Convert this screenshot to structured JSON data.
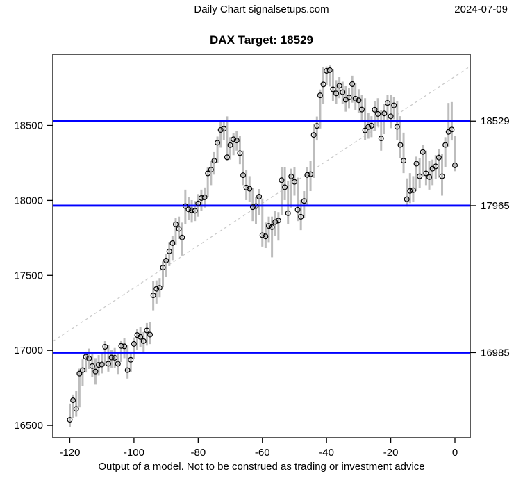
{
  "header": {
    "title": "Daily Chart signalsetups.com",
    "date": "2024-07-09"
  },
  "chart": {
    "title": "DAX Target: 18529"
  },
  "footer": {
    "disclaimer": "Output of a model. Not to be construed as trading or investment advice"
  },
  "colors": {
    "bar": "#bdbdbd",
    "trend": "#c8c8c8",
    "level_line": "#0000ff",
    "axis": "#000000",
    "marker_stroke": "#000000"
  },
  "chart_data": {
    "type": "bar",
    "title": "DAX Target: 18529",
    "xlabel": "",
    "ylabel": "",
    "x_ticks": [
      -120,
      -100,
      -80,
      -60,
      -40,
      -20,
      0
    ],
    "y_ticks": [
      16500,
      17000,
      17500,
      18000,
      18500
    ],
    "xlim": [
      -125.3,
      4.76
    ],
    "ylim": [
      16417,
      18975
    ],
    "grid": false,
    "legend": "none",
    "h_lines": [
      {
        "value": 18529,
        "label": "18529"
      },
      {
        "value": 17965,
        "label": "17965"
      },
      {
        "value": 16985,
        "label": "16985"
      }
    ],
    "trend_line": {
      "x": [
        -125.3,
        4.76
      ],
      "y": [
        17060,
        18894
      ],
      "style": "dashed"
    },
    "start_day": -120,
    "bars_format": [
      "low",
      "high",
      "close"
    ],
    "bars": [
      [
        16490,
        16645,
        16537
      ],
      [
        16548,
        16705,
        16667
      ],
      [
        16558,
        16728,
        16610
      ],
      [
        16620,
        16878,
        16845
      ],
      [
        16762,
        16940,
        16868
      ],
      [
        16852,
        16992,
        16957
      ],
      [
        16876,
        17012,
        16946
      ],
      [
        16822,
        16978,
        16895
      ],
      [
        16772,
        16948,
        16859
      ],
      [
        16832,
        16968,
        16903
      ],
      [
        16846,
        16986,
        16906
      ],
      [
        16902,
        17062,
        17024
      ],
      [
        16858,
        17034,
        16911
      ],
      [
        16882,
        17002,
        16952
      ],
      [
        16884,
        17016,
        16950
      ],
      [
        16842,
        16984,
        16911
      ],
      [
        16922,
        17066,
        17030
      ],
      [
        16948,
        17082,
        17027
      ],
      [
        16812,
        17038,
        16868
      ],
      [
        16856,
        16992,
        16937
      ],
      [
        16942,
        17086,
        17043
      ],
      [
        17002,
        17142,
        17102
      ],
      [
        17022,
        17154,
        17090
      ],
      [
        16986,
        17122,
        17062
      ],
      [
        17032,
        17182,
        17133
      ],
      [
        17042,
        17188,
        17105
      ],
      [
        17267,
        17460,
        17367
      ],
      [
        17312,
        17466,
        17410
      ],
      [
        17352,
        17482,
        17417
      ],
      [
        17422,
        17592,
        17552
      ],
      [
        17492,
        17642,
        17599
      ],
      [
        17562,
        17722,
        17660
      ],
      [
        17602,
        17762,
        17715
      ],
      [
        17702,
        17882,
        17841
      ],
      [
        17742,
        17892,
        17810
      ],
      [
        17632,
        17852,
        17753
      ],
      [
        17842,
        18072,
        17962
      ],
      [
        17872,
        18022,
        17940
      ],
      [
        17852,
        18002,
        17934
      ],
      [
        17862,
        17996,
        17931
      ],
      [
        17892,
        18042,
        17980
      ],
      [
        17932,
        18072,
        18016
      ],
      [
        17952,
        18086,
        18021
      ],
      [
        18022,
        18222,
        18180
      ],
      [
        18102,
        18262,
        18205
      ],
      [
        18172,
        18322,
        18265
      ],
      [
        18252,
        18426,
        18385
      ],
      [
        18352,
        18522,
        18470
      ],
      [
        18402,
        18536,
        18478
      ],
      [
        18265,
        18561,
        18288
      ],
      [
        18272,
        18422,
        18369
      ],
      [
        18302,
        18448,
        18408
      ],
      [
        18332,
        18462,
        18400
      ],
      [
        18242,
        18432,
        18315
      ],
      [
        18102,
        18332,
        18168
      ],
      [
        18002,
        18202,
        18086
      ],
      [
        17992,
        18162,
        18078
      ],
      [
        17862,
        18082,
        17955
      ],
      [
        17842,
        18022,
        17962
      ],
      [
        17902,
        18076,
        18025
      ],
      [
        17692,
        18012,
        17768
      ],
      [
        17682,
        17852,
        17760
      ],
      [
        17722,
        17892,
        17830
      ],
      [
        17620,
        17892,
        17822
      ],
      [
        17762,
        17932,
        17856
      ],
      [
        17732,
        17922,
        17866
      ],
      [
        17902,
        18222,
        18135
      ],
      [
        18002,
        18222,
        18088
      ],
      [
        17842,
        18132,
        17915
      ],
      [
        17952,
        18212,
        18160
      ],
      [
        18032,
        18222,
        18124
      ],
      [
        17862,
        18152,
        17938
      ],
      [
        17802,
        18002,
        17891
      ],
      [
        17882,
        18062,
        17996
      ],
      [
        17972,
        18222,
        18170
      ],
      [
        18062,
        18262,
        18175
      ],
      [
        18150,
        18510,
        18437
      ],
      [
        18400,
        18560,
        18497
      ],
      [
        18480,
        18740,
        18701
      ],
      [
        18642,
        18888,
        18774
      ],
      [
        18770,
        18893,
        18864
      ],
      [
        18760,
        18900,
        18869
      ],
      [
        18662,
        18872,
        18741
      ],
      [
        18642,
        18802,
        18714
      ],
      [
        18682,
        18822,
        18765
      ],
      [
        18642,
        18792,
        18722
      ],
      [
        18592,
        18762,
        18672
      ],
      [
        18612,
        18752,
        18687
      ],
      [
        18652,
        18832,
        18776
      ],
      [
        18602,
        18782,
        18679
      ],
      [
        18582,
        18742,
        18668
      ],
      [
        18522,
        18702,
        18606
      ],
      [
        18402,
        18682,
        18467
      ],
      [
        18412,
        18582,
        18490
      ],
      [
        18422,
        18562,
        18498
      ],
      [
        18462,
        18662,
        18605
      ],
      [
        18492,
        18682,
        18577
      ],
      [
        18332,
        18602,
        18414
      ],
      [
        18442,
        18642,
        18580
      ],
      [
        18522,
        18702,
        18650
      ],
      [
        18482,
        18702,
        18561
      ],
      [
        18542,
        18692,
        18634
      ],
      [
        18402,
        18662,
        18491
      ],
      [
        18282,
        18562,
        18370
      ],
      [
        18182,
        18452,
        18265
      ],
      [
        17958,
        18147,
        18008
      ],
      [
        17982,
        18182,
        18063
      ],
      [
        17992,
        18162,
        18068
      ],
      [
        18062,
        18292,
        18245
      ],
      [
        18082,
        18282,
        18161
      ],
      [
        18162,
        18372,
        18323
      ],
      [
        18102,
        18332,
        18180
      ],
      [
        18072,
        18262,
        18156
      ],
      [
        18102,
        18272,
        18212
      ],
      [
        18142,
        18302,
        18227
      ],
      [
        18152,
        18342,
        18286
      ],
      [
        18032,
        18312,
        18161
      ],
      [
        18222,
        18422,
        18370
      ],
      [
        18360,
        18650,
        18457
      ],
      [
        18400,
        18656,
        18473
      ],
      [
        18195,
        18432,
        18234
      ]
    ]
  }
}
